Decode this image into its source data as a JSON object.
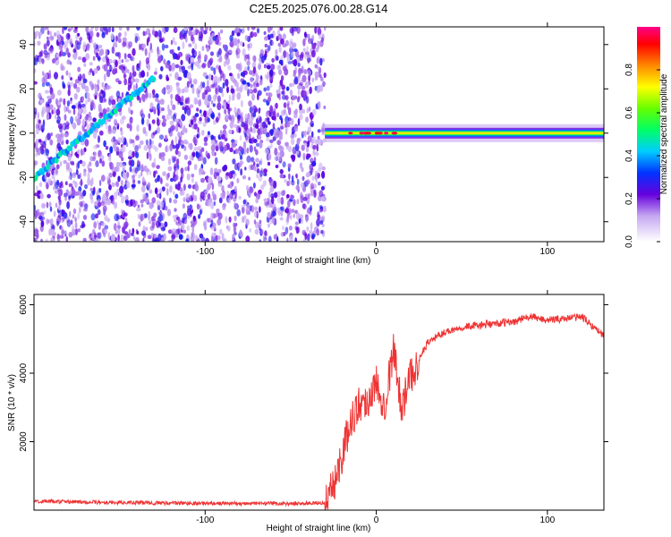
{
  "page_title": "C2E5.2025.076.00.28.G14",
  "chart_data": [
    {
      "type": "heatmap",
      "xlabel": "Height of straight line (km)",
      "ylabel": "Frequency (Hz)",
      "xlim": [
        -200,
        133
      ],
      "ylim": [
        -49,
        48
      ],
      "xticks": [
        -100,
        0,
        100
      ],
      "xtick_labels": [
        "-100",
        "0",
        "100"
      ],
      "yticks": [
        -40,
        -20,
        0,
        20,
        40
      ],
      "ytick_labels": [
        "-40",
        "-20",
        "0",
        "20",
        "40"
      ],
      "noise_region": {
        "x": [
          -200,
          -30
        ],
        "amplitude": [
          0.1,
          0.3
        ]
      },
      "chirp_line": {
        "x": [
          -200,
          -130
        ],
        "y": [
          -20,
          25
        ],
        "amplitude": 0.35
      },
      "carrier": {
        "x": [
          -30,
          133
        ],
        "y": 0,
        "peak_amplitude": 1.0
      },
      "colorbar": {
        "label": "Normalized spectral amplitude",
        "ticks": [
          0.0,
          0.2,
          0.4,
          0.6,
          0.8
        ],
        "tick_labels": [
          "0.0",
          "0.2",
          "0.4",
          "0.6",
          "0.8"
        ],
        "range": [
          0,
          1
        ]
      },
      "grid": false
    },
    {
      "type": "line",
      "xlabel": "Height of straight line (km)",
      "ylabel": "SNR (10 * v/v)",
      "xlim": [
        -200,
        133
      ],
      "ylim": [
        0,
        6300
      ],
      "xticks": [
        -100,
        0,
        100
      ],
      "xtick_labels": [
        "-100",
        "0",
        "100"
      ],
      "yticks": [
        2000,
        4000,
        6000
      ],
      "ytick_labels": [
        "2000",
        "4000",
        "6000"
      ],
      "line_color": "#ee3333",
      "x": [
        -200,
        -150,
        -100,
        -50,
        -30,
        -25,
        -20,
        -15,
        -10,
        -5,
        0,
        5,
        10,
        15,
        20,
        30,
        40,
        50,
        60,
        70,
        80,
        90,
        100,
        110,
        120,
        133
      ],
      "values": [
        260,
        220,
        200,
        190,
        210,
        700,
        1600,
        2600,
        3100,
        3200,
        3700,
        3100,
        4700,
        3000,
        3900,
        4900,
        5200,
        5350,
        5400,
        5450,
        5500,
        5650,
        5550,
        5600,
        5650,
        5100
      ],
      "grid": false
    }
  ]
}
